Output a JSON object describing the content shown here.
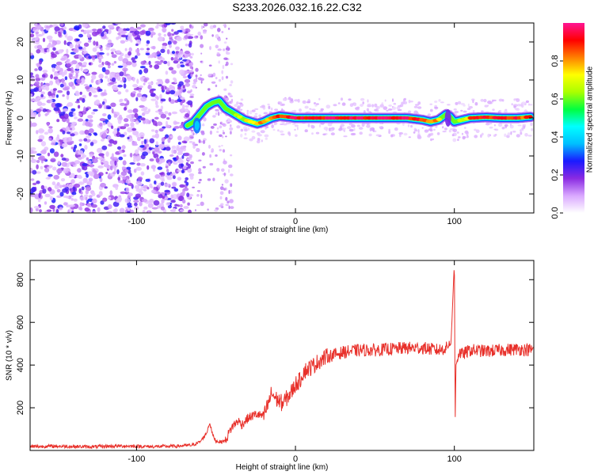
{
  "title": "S233.2026.032.16.22.C32",
  "chart_data": [
    {
      "type": "heatmap",
      "xlabel": "Height of straight line (km)",
      "ylabel": "Frequency (Hz)",
      "xlim": [
        -167,
        150
      ],
      "ylim": [
        -25,
        25
      ],
      "xticks": [
        -100,
        0,
        100
      ],
      "yticks": [
        -20,
        -10,
        0,
        10,
        20
      ],
      "colorbar": {
        "label": "Normalized spectral amplitude",
        "range": [
          0,
          1
        ],
        "ticks": [
          0.0,
          0.2,
          0.4,
          0.6,
          0.8
        ],
        "tick_labels": [
          "0.0",
          "0.2",
          "0.4",
          "0.6",
          "0.8"
        ],
        "colormap": [
          "#ffffff",
          "#d9a8ff",
          "#8a2be2",
          "#1a1aff",
          "#00bfff",
          "#00ffff",
          "#00ff40",
          "#aaff00",
          "#ffff00",
          "#ff8000",
          "#ff0000",
          "#ff1493"
        ]
      },
      "noise_region_x": [
        -167,
        -50
      ],
      "ridge": {
        "x": [
          -68,
          -64,
          -60,
          -56,
          -52,
          -48,
          -44,
          -40,
          -36,
          -32,
          -28,
          -24,
          -20,
          -15,
          -10,
          -5,
          0,
          10,
          20,
          30,
          40,
          50,
          60,
          70,
          80,
          85,
          90,
          95,
          97,
          100,
          105,
          110,
          120,
          130,
          140,
          148
        ],
        "freq": [
          -2,
          -1,
          1,
          3,
          4,
          4.5,
          2.5,
          1.5,
          0.5,
          -0.5,
          -1,
          -1.5,
          -1,
          0,
          0.5,
          0.3,
          0,
          0,
          0,
          0,
          0,
          0,
          0,
          0,
          -0.5,
          -1,
          -0.5,
          1,
          0.5,
          -1,
          -0.5,
          0,
          0.2,
          0,
          0,
          0.3
        ],
        "amplitude": [
          0.25,
          0.3,
          0.3,
          0.35,
          0.4,
          0.35,
          0.5,
          0.6,
          0.65,
          0.7,
          0.75,
          0.8,
          0.8,
          0.85,
          0.9,
          0.9,
          0.95,
          0.95,
          0.95,
          0.95,
          0.95,
          0.95,
          0.95,
          0.95,
          0.9,
          0.85,
          0.8,
          0.35,
          0.3,
          0.5,
          0.7,
          0.85,
          0.9,
          0.9,
          0.9,
          0.85
        ]
      }
    },
    {
      "type": "line",
      "xlabel": "Height of straight line (km)",
      "ylabel": "SNR (10 * v/v)",
      "xlim": [
        -167,
        150
      ],
      "ylim": [
        0,
        890
      ],
      "xticks": [
        -100,
        0,
        100
      ],
      "yticks": [
        200,
        400,
        600,
        800
      ],
      "series": [
        {
          "color": "#e8302a",
          "x": [
            -167,
            -150,
            -130,
            -110,
            -90,
            -75,
            -65,
            -60,
            -56,
            -54,
            -52,
            -50,
            -47,
            -44,
            -42,
            -40,
            -36,
            -34,
            -30,
            -25,
            -20,
            -17,
            -15,
            -12,
            -10,
            -8,
            -5,
            -2,
            0,
            3,
            5,
            10,
            15,
            20,
            25,
            30,
            40,
            50,
            60,
            70,
            80,
            90,
            95,
            98,
            99,
            100,
            100.5,
            101,
            103,
            105,
            110,
            120,
            130,
            140,
            150
          ],
          "y": [
            18,
            20,
            17,
            21,
            18,
            20,
            25,
            40,
            80,
            130,
            70,
            45,
            40,
            45,
            80,
            110,
            140,
            120,
            150,
            170,
            160,
            220,
            270,
            240,
            230,
            220,
            250,
            280,
            310,
            330,
            370,
            390,
            420,
            440,
            450,
            460,
            470,
            470,
            475,
            480,
            480,
            470,
            480,
            520,
            700,
            880,
            130,
            400,
            460,
            450,
            470,
            465,
            470,
            475,
            470
          ]
        }
      ]
    }
  ]
}
